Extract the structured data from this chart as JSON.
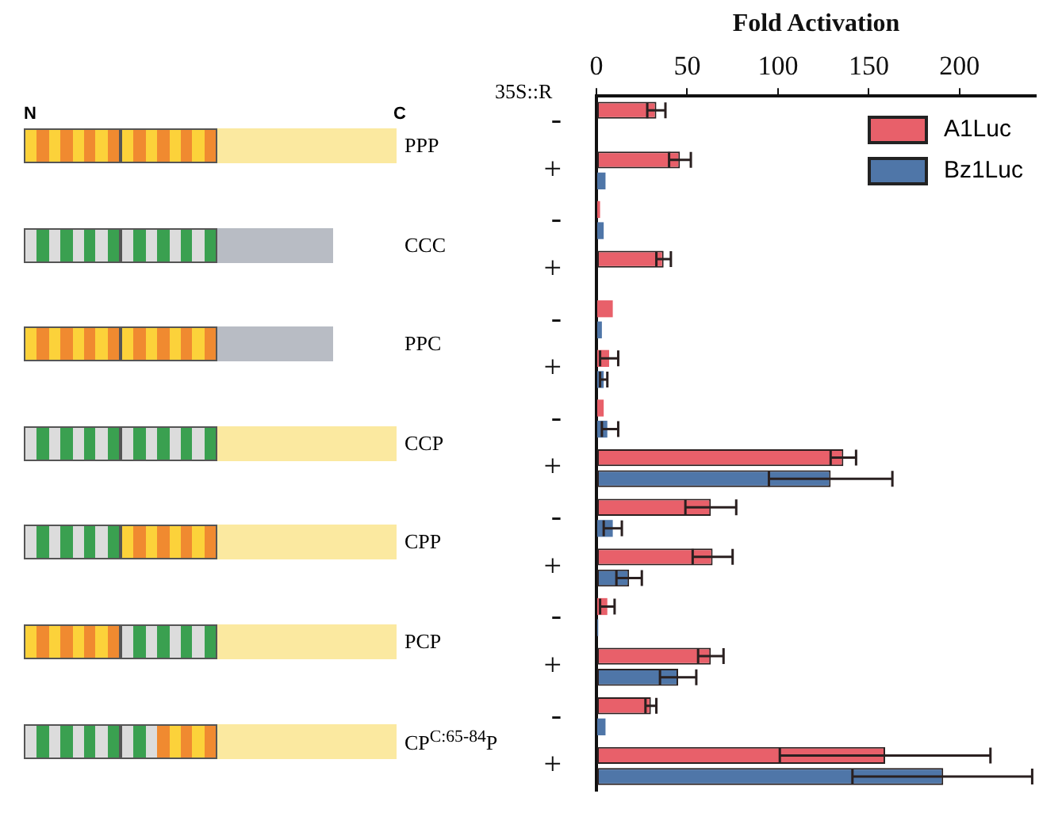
{
  "chart_data": {
    "type": "bar",
    "orientation": "horizontal",
    "xlabel": "Fold Activation",
    "ylabel": "35S::R",
    "categories": [
      "-",
      "+",
      "-",
      "+",
      "-",
      "+",
      "-",
      "+",
      "-",
      "+",
      "-",
      "+",
      "-",
      "+"
    ],
    "annotations": [
      "N",
      "C",
      "PPP",
      "CCC",
      "PPC",
      "CCP",
      "CPP",
      "PCP",
      "CP$^{C:65-84}$P"
    ],
    "series": [
      {
        "name": "A1Luc",
        "color": "#e8606a",
        "values": [
          33,
          46,
          2,
          37,
          9,
          7,
          4,
          136,
          63,
          64,
          6,
          63,
          30,
          159
        ],
        "errors": [
          5,
          6,
          null,
          4,
          null,
          5,
          null,
          7,
          14,
          11,
          4,
          7,
          3,
          58
        ]
      },
      {
        "name": "Bz1Luc",
        "color": "#4f76a8",
        "values": [
          null,
          5,
          4,
          null,
          3,
          4,
          6,
          129,
          9,
          18,
          1,
          45,
          5,
          191
        ],
        "errors": [
          null,
          null,
          null,
          null,
          null,
          2,
          [
            3,
            12
          ],
          34,
          5,
          7,
          null,
          10,
          null,
          [
            141,
            240
          ]
        ]
      }
    ],
    "xlim": [
      0,
      242
    ],
    "xticks": [
      0,
      50,
      100,
      150,
      200
    ],
    "grid": false,
    "legend": "top right"
  }
}
